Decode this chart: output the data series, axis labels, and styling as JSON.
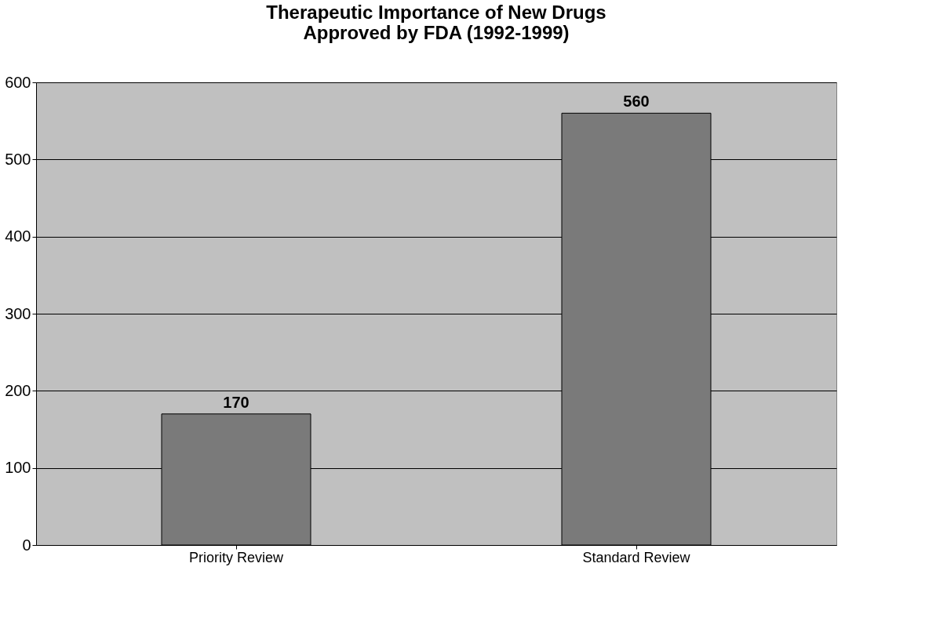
{
  "chart_data": {
    "type": "bar",
    "title": [
      "Therapeutic Importance of New Drugs",
      "Approved by FDA (1992-1999)"
    ],
    "categories": [
      "Priority Review",
      "Standard Review"
    ],
    "values": [
      170,
      560
    ],
    "color": "#7a7a7a",
    "ylim": [
      0,
      600
    ],
    "yticks": [
      0,
      100,
      200,
      300,
      400,
      500,
      600
    ],
    "grid": "y",
    "data_labels": true
  }
}
